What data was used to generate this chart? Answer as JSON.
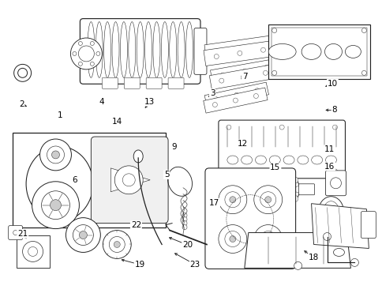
{
  "bg_color": "#ffffff",
  "line_color": "#222222",
  "annotations": [
    [
      19,
      0.365,
      0.94,
      0.31,
      0.92
    ],
    [
      21,
      0.058,
      0.83,
      0.072,
      0.855
    ],
    [
      23,
      0.51,
      0.94,
      0.45,
      0.895
    ],
    [
      20,
      0.49,
      0.87,
      0.435,
      0.84
    ],
    [
      22,
      0.355,
      0.8,
      0.37,
      0.82
    ],
    [
      18,
      0.82,
      0.915,
      0.79,
      0.885
    ],
    [
      17,
      0.56,
      0.72,
      0.555,
      0.71
    ],
    [
      6,
      0.195,
      0.64,
      0.195,
      0.625
    ],
    [
      5,
      0.435,
      0.62,
      0.44,
      0.6
    ],
    [
      9,
      0.455,
      0.52,
      0.46,
      0.54
    ],
    [
      15,
      0.72,
      0.595,
      0.715,
      0.58
    ],
    [
      16,
      0.862,
      0.59,
      0.855,
      0.57
    ],
    [
      11,
      0.862,
      0.53,
      0.845,
      0.52
    ],
    [
      12,
      0.635,
      0.51,
      0.622,
      0.51
    ],
    [
      14,
      0.305,
      0.43,
      0.285,
      0.415
    ],
    [
      1,
      0.155,
      0.41,
      0.155,
      0.395
    ],
    [
      2,
      0.055,
      0.37,
      0.075,
      0.38
    ],
    [
      4,
      0.265,
      0.36,
      0.265,
      0.38
    ],
    [
      13,
      0.39,
      0.36,
      0.375,
      0.39
    ],
    [
      3,
      0.555,
      0.33,
      0.54,
      0.35
    ],
    [
      7,
      0.64,
      0.27,
      0.625,
      0.285
    ],
    [
      8,
      0.875,
      0.39,
      0.845,
      0.39
    ],
    [
      10,
      0.87,
      0.295,
      0.845,
      0.31
    ]
  ]
}
